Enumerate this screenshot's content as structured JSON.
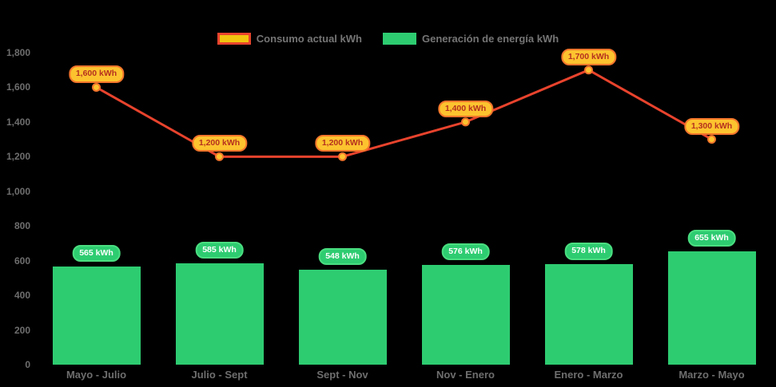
{
  "legend": {
    "items": [
      {
        "label": "Consumo actual kWh"
      },
      {
        "label": "Generación de energía kWh"
      }
    ]
  },
  "chart_data": {
    "type": "combo",
    "categories": [
      "Mayo - Julio",
      "Julio - Sept",
      "Sept - Nov",
      "Nov - Enero",
      "Enero - Marzo",
      "Marzo - Mayo"
    ],
    "series": [
      {
        "name": "Consumo actual kWh",
        "type": "line",
        "color": "#e8432d",
        "values": [
          1600,
          1200,
          1200,
          1400,
          1700,
          1300
        ],
        "labels": [
          "1,600 kWh",
          "1,200 kWh",
          "1,200 kWh",
          "1,400 kWh",
          "1,700 kWh",
          "1,300 kWh"
        ]
      },
      {
        "name": "Generación de energía kWh",
        "type": "bar",
        "color": "#2ecc71",
        "values": [
          565,
          585,
          548,
          576,
          578,
          655
        ],
        "labels": [
          "565 kWh",
          "585 kWh",
          "548 kWh",
          "576 kWh",
          "578 kWh",
          "655 kWh"
        ]
      }
    ],
    "y_ticks": [
      {
        "label": "0",
        "value": 0
      },
      {
        "label": "200",
        "value": 200
      },
      {
        "label": "400",
        "value": 400
      },
      {
        "label": "600",
        "value": 600
      },
      {
        "label": "800",
        "value": 800
      },
      {
        "label": "1,000",
        "value": 1000
      },
      {
        "label": "1,200",
        "value": 1200
      },
      {
        "label": "1,400",
        "value": 1400
      },
      {
        "label": "1,600",
        "value": 1600
      },
      {
        "label": "1,800",
        "value": 1800
      }
    ],
    "ylim": [
      0,
      1800
    ],
    "grid": false,
    "legend_position": "top",
    "background": "#000000"
  },
  "colors": {
    "background": "#000000",
    "line": "#e8432d",
    "bar": "#2ecc71",
    "marker_fill": "#fdc32f",
    "marker_ring": "#f3752b",
    "line_badge_bg": "#fdc32f",
    "line_badge_border": "#f3752b",
    "line_badge_text": "#b5311f",
    "bar_badge_bg": "#2ecc71",
    "bar_badge_border": "#4ade80",
    "bar_badge_text": "#ffffff",
    "axis_text": "#6e6e6e",
    "legend_text": "#757575",
    "legend_consumo_swatch_fill": "#f2c40f",
    "legend_consumo_swatch_border": "#e8432d"
  }
}
